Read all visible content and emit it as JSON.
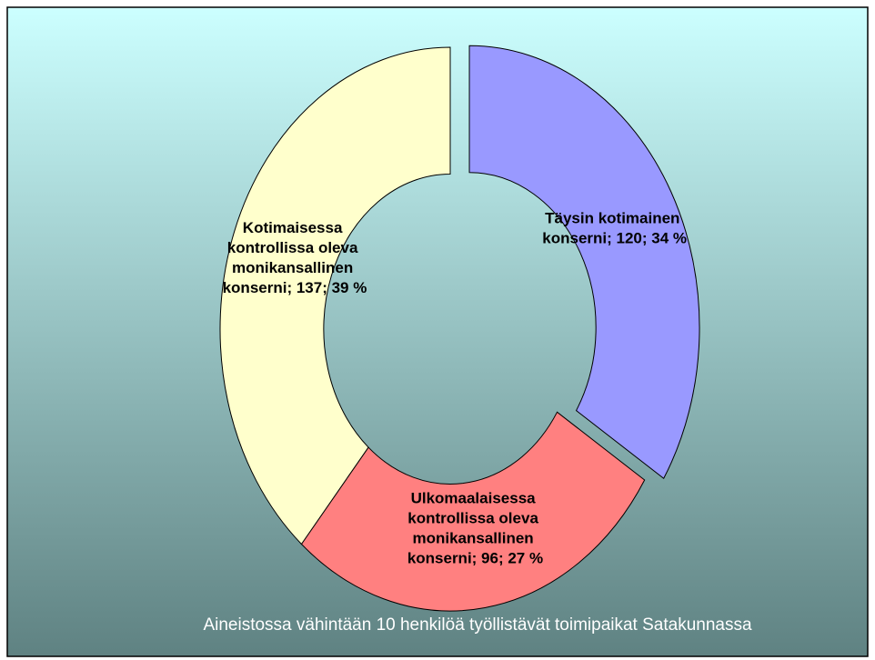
{
  "chart_data": {
    "type": "donut",
    "values": [
      120,
      96,
      137
    ],
    "value_labels": [
      "Täysin kotimainen konserni; 120; 34 %",
      "Ulkomaalaisessa kontrollissa oleva monikansallinen konserni; 96; 27 %",
      "Kotimaisessa kontrollissa oleva monikansallinen konserni; 137; 39 %"
    ],
    "colors": [
      "#9999ff",
      "#ff8080",
      "#ffffcc"
    ],
    "exploded": [
      true,
      false,
      false
    ],
    "footnote": "Aineistossa vähintään 10 henkilöä työllistävät toimipaikat Satakunnassa"
  }
}
